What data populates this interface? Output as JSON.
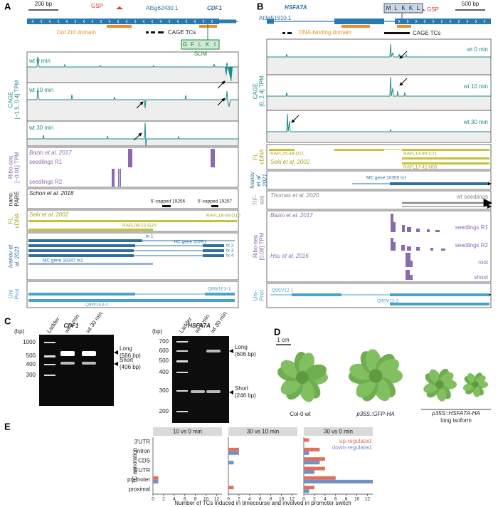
{
  "panel_a": {
    "label": "A",
    "scale": "200 bp",
    "primer": "GSP",
    "transcript": "At5g62430.1",
    "gene": "CDF1",
    "domain": "Dof Znf domain",
    "cage_tcs": "CAGE TCs",
    "slim": "SLiM",
    "motif": [
      "G",
      "F",
      "L",
      "K",
      "I"
    ],
    "cage": {
      "axis": [
        "CAGE",
        "[−1.5, 0.4] TPM"
      ],
      "tracks": [
        "wt 0 min",
        "wt 10 min",
        "wt 30 min"
      ]
    },
    "ribo": {
      "axis": [
        "Ribo-seq",
        "[−0.01] TPM"
      ],
      "source": "Bazin et al. 2017",
      "tracks": [
        "seedlings R1",
        "seedlings R2"
      ]
    },
    "nanopare": {
      "axis": [
        "nano-",
        "PARE"
      ],
      "source": "Schon et al. 2018",
      "peaks": [
        "5'-capped 19256",
        "5'-capped 19257"
      ]
    },
    "fl_cdna": {
      "axis": [
        "FL",
        "cDNA"
      ],
      "source": "Seki et al. 2002",
      "clones": [
        "RAFL18-04-O10",
        "RAFL09-22-G20"
      ]
    },
    "ivanov": {
      "axis": [
        "Ivanov et",
        "al. 2021"
      ],
      "transcripts": [
        "tx 1",
        "HC gene 20761",
        "tx 2",
        "tx 3",
        "tx 4",
        "MC gene 18347 tx1"
      ]
    },
    "uniprot": {
      "axis": [
        "Uni",
        "Prot"
      ],
      "isoforms": [
        "Q8W1E3-1",
        "Q8W1E3-2"
      ]
    }
  },
  "panel_b": {
    "label": "B",
    "gene": "HSFA7A",
    "transcript": "At3g51910.1",
    "motif": [
      "M",
      "L",
      "K",
      "K",
      "L"
    ],
    "primer": "GSP",
    "scale": "500 bp",
    "domain": "DNA-binding domain",
    "cage_tcs": "CAGE TCs",
    "cage": {
      "axis": [
        "CAGE",
        "[0, 2.4] TPM"
      ],
      "tracks": [
        "wt 0 min",
        "wt 10 min",
        "wt 30 min"
      ]
    },
    "fl_cdna": {
      "axis": [
        "FL",
        "cDNA"
      ],
      "clones": [
        "RAFL25-48-D21",
        "RAFL14-90-C21",
        "RAFL17-42-N05"
      ],
      "source": "Seki et al. 2002"
    },
    "ivanov": {
      "axis": [
        "Ivanov",
        "et al.",
        "2021"
      ],
      "transcripts": [
        "MC gene 10355 tx1"
      ]
    },
    "tif_seq": {
      "axis": [
        "TIF-",
        "seq"
      ],
      "source": "Thomas et al. 2020",
      "tracks": [
        "wt seedlings"
      ]
    },
    "ribo": {
      "axis": [
        "Ribo-seq",
        "[0.08] TPM"
      ],
      "sources": [
        "Bazin et al. 2017",
        "Hsu et al. 2016"
      ],
      "tracks": [
        "seedlings R1",
        "seedlings R2",
        "root",
        "shoot"
      ]
    },
    "uniprot": {
      "axis": [
        "Uni-",
        "Prot"
      ],
      "isoforms": [
        "Q9SV12-1",
        "Q9SV12-2"
      ]
    }
  },
  "panel_c": {
    "label": "C",
    "gels": [
      {
        "gene": "CDF1",
        "unit": "(bp)",
        "lanes": [
          "Ladder",
          "wt 0 min",
          "wt 30 min"
        ],
        "ladder": [
          1000,
          500,
          400,
          300
        ],
        "bands": [
          {
            "name": "Long",
            "size": "(566 bp)"
          },
          {
            "name": "Short",
            "size": "(406 bp)"
          }
        ]
      },
      {
        "gene": "HSFA7A",
        "unit": "(bp)",
        "lanes": [
          "Ladder",
          "wt 0 min",
          "wt 30 min"
        ],
        "ladder": [
          700,
          600,
          500,
          400,
          300,
          200
        ],
        "bands": [
          {
            "name": "Long",
            "size": "(606 bp)"
          },
          {
            "name": "Short",
            "size": "(246 bp)"
          }
        ]
      }
    ]
  },
  "panel_d": {
    "label": "D",
    "scale": "1 cm",
    "plants": [
      "Col-0 wt",
      "p35S::GFP-HA"
    ],
    "transgenic": "p35S::HSFA7A-HA",
    "note": "long isoform"
  },
  "chart_data": {
    "type": "bar",
    "orientation": "horizontal",
    "panel_label": "E",
    "facets": [
      "10 vs 0 min",
      "30 vs 10 min",
      "30 vs 0 min"
    ],
    "categories": [
      "3'UTR",
      "intron",
      "CDS",
      "5'UTR",
      "promoter",
      "proximal"
    ],
    "series": [
      {
        "name": "up-regulated",
        "color": "#e0705a",
        "values": [
          [
            0,
            0,
            0,
            0,
            1,
            0
          ],
          [
            0,
            2,
            0,
            0,
            0,
            1
          ],
          [
            1,
            3,
            4,
            4,
            6,
            2
          ]
        ]
      },
      {
        "name": "down-regulated",
        "color": "#6f91c9",
        "values": [
          [
            0,
            0,
            0,
            0,
            1,
            0
          ],
          [
            0,
            2,
            1,
            0,
            0,
            0
          ],
          [
            0,
            1,
            3,
            2,
            13,
            1
          ]
        ]
      }
    ],
    "xlim": [
      0,
      13
    ],
    "xticks": [
      0,
      2,
      4,
      6,
      8,
      10,
      12
    ],
    "x_label": "Number of TCs induced in timecourse and involved in promoter switch",
    "y_label": "TC annotation"
  }
}
